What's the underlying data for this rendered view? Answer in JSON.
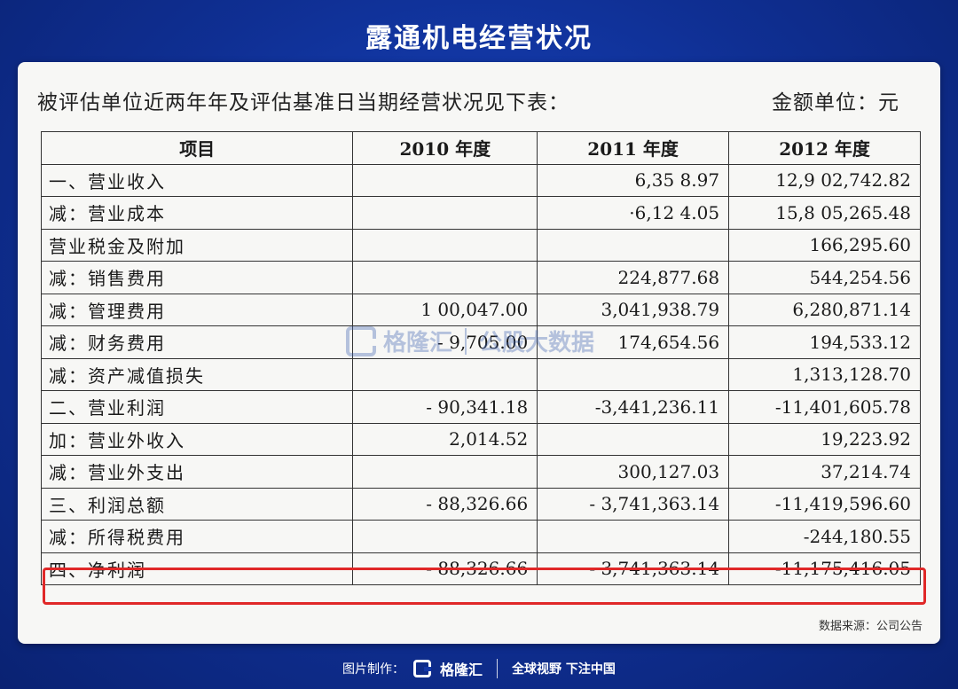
{
  "title": "露通机电经营状况",
  "intro": "被评估单位近两年年及评估基准日当期经营状况见下表：",
  "unit": "金额单位：元",
  "table": {
    "headers": [
      "项目",
      "2010 年度",
      "2011 年度",
      "2012 年度"
    ],
    "rows": [
      [
        "一、营业收入",
        "",
        "6,35 8.97",
        "12,9 02,742.82"
      ],
      [
        "减：营业成本",
        "",
        "·6,12 4.05",
        "15,8 05,265.48"
      ],
      [
        "营业税金及附加",
        "",
        "",
        "166,295.60"
      ],
      [
        "减：销售费用",
        "",
        "224,877.68",
        "544,254.56"
      ],
      [
        "减：管理费用",
        "1 00,047.00",
        "3,041,938.79",
        "6,280,871.14"
      ],
      [
        "减：财务费用",
        "- 9,705.00",
        "174,654.56",
        "194,533.12"
      ],
      [
        "减：资产减值损失",
        "",
        "",
        "1,313,128.70"
      ],
      [
        "二、营业利润",
        "- 90,341.18",
        "-3,441,236.11",
        "-11,401,605.78"
      ],
      [
        "加：营业外收入",
        "2,014.52",
        "",
        "19,223.92"
      ],
      [
        "减：营业外支出",
        "",
        "300,127.03",
        "37,214.74"
      ],
      [
        "三、利润总额",
        "- 88,326.66",
        "- 3,741,363.14",
        "-11,419,596.60"
      ],
      [
        "减：所得税费用",
        "",
        "",
        "-244,180.55"
      ],
      [
        "四、净利润",
        "- 88,326.66",
        "- 3,741,363.14",
        "-11,175,416.05"
      ]
    ]
  },
  "watermark": {
    "brand": "格隆汇",
    "product": "公股大数据"
  },
  "source": "数据来源：公司公告",
  "footer": {
    "made_by": "图片制作：",
    "brand": "格隆汇",
    "slogan": "全球视野 下注中国"
  },
  "colors": {
    "background": "#0f2f93",
    "highlight": "#e02828"
  }
}
